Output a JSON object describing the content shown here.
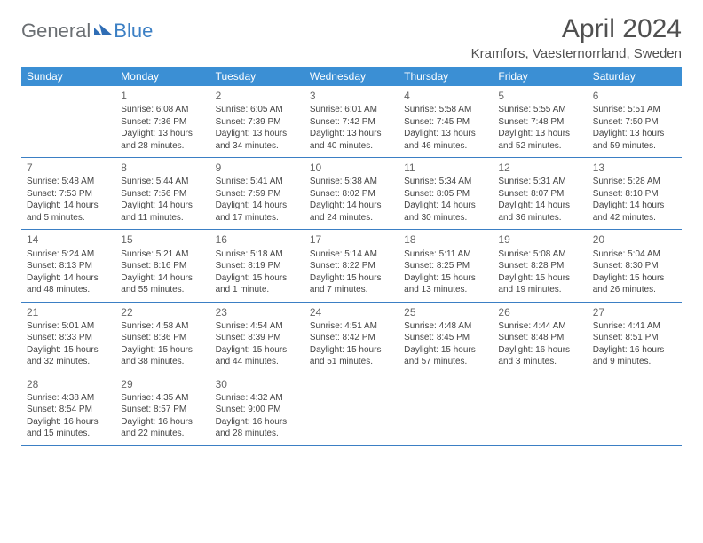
{
  "logo": {
    "general": "General",
    "blue": "Blue"
  },
  "title": "April 2024",
  "location": "Kramfors, Vaesternorrland, Sweden",
  "colors": {
    "header_bg": "#3b8fd4",
    "header_text": "#ffffff",
    "border": "#3b7fc4",
    "body_text": "#444444",
    "title_text": "#505050",
    "logo_gray": "#6b6f73",
    "logo_blue": "#3b7fc4",
    "background": "#ffffff"
  },
  "day_names": [
    "Sunday",
    "Monday",
    "Tuesday",
    "Wednesday",
    "Thursday",
    "Friday",
    "Saturday"
  ],
  "weeks": [
    [
      null,
      {
        "n": "1",
        "sr": "Sunrise: 6:08 AM",
        "ss": "Sunset: 7:36 PM",
        "d1": "Daylight: 13 hours",
        "d2": "and 28 minutes."
      },
      {
        "n": "2",
        "sr": "Sunrise: 6:05 AM",
        "ss": "Sunset: 7:39 PM",
        "d1": "Daylight: 13 hours",
        "d2": "and 34 minutes."
      },
      {
        "n": "3",
        "sr": "Sunrise: 6:01 AM",
        "ss": "Sunset: 7:42 PM",
        "d1": "Daylight: 13 hours",
        "d2": "and 40 minutes."
      },
      {
        "n": "4",
        "sr": "Sunrise: 5:58 AM",
        "ss": "Sunset: 7:45 PM",
        "d1": "Daylight: 13 hours",
        "d2": "and 46 minutes."
      },
      {
        "n": "5",
        "sr": "Sunrise: 5:55 AM",
        "ss": "Sunset: 7:48 PM",
        "d1": "Daylight: 13 hours",
        "d2": "and 52 minutes."
      },
      {
        "n": "6",
        "sr": "Sunrise: 5:51 AM",
        "ss": "Sunset: 7:50 PM",
        "d1": "Daylight: 13 hours",
        "d2": "and 59 minutes."
      }
    ],
    [
      {
        "n": "7",
        "sr": "Sunrise: 5:48 AM",
        "ss": "Sunset: 7:53 PM",
        "d1": "Daylight: 14 hours",
        "d2": "and 5 minutes."
      },
      {
        "n": "8",
        "sr": "Sunrise: 5:44 AM",
        "ss": "Sunset: 7:56 PM",
        "d1": "Daylight: 14 hours",
        "d2": "and 11 minutes."
      },
      {
        "n": "9",
        "sr": "Sunrise: 5:41 AM",
        "ss": "Sunset: 7:59 PM",
        "d1": "Daylight: 14 hours",
        "d2": "and 17 minutes."
      },
      {
        "n": "10",
        "sr": "Sunrise: 5:38 AM",
        "ss": "Sunset: 8:02 PM",
        "d1": "Daylight: 14 hours",
        "d2": "and 24 minutes."
      },
      {
        "n": "11",
        "sr": "Sunrise: 5:34 AM",
        "ss": "Sunset: 8:05 PM",
        "d1": "Daylight: 14 hours",
        "d2": "and 30 minutes."
      },
      {
        "n": "12",
        "sr": "Sunrise: 5:31 AM",
        "ss": "Sunset: 8:07 PM",
        "d1": "Daylight: 14 hours",
        "d2": "and 36 minutes."
      },
      {
        "n": "13",
        "sr": "Sunrise: 5:28 AM",
        "ss": "Sunset: 8:10 PM",
        "d1": "Daylight: 14 hours",
        "d2": "and 42 minutes."
      }
    ],
    [
      {
        "n": "14",
        "sr": "Sunrise: 5:24 AM",
        "ss": "Sunset: 8:13 PM",
        "d1": "Daylight: 14 hours",
        "d2": "and 48 minutes."
      },
      {
        "n": "15",
        "sr": "Sunrise: 5:21 AM",
        "ss": "Sunset: 8:16 PM",
        "d1": "Daylight: 14 hours",
        "d2": "and 55 minutes."
      },
      {
        "n": "16",
        "sr": "Sunrise: 5:18 AM",
        "ss": "Sunset: 8:19 PM",
        "d1": "Daylight: 15 hours",
        "d2": "and 1 minute."
      },
      {
        "n": "17",
        "sr": "Sunrise: 5:14 AM",
        "ss": "Sunset: 8:22 PM",
        "d1": "Daylight: 15 hours",
        "d2": "and 7 minutes."
      },
      {
        "n": "18",
        "sr": "Sunrise: 5:11 AM",
        "ss": "Sunset: 8:25 PM",
        "d1": "Daylight: 15 hours",
        "d2": "and 13 minutes."
      },
      {
        "n": "19",
        "sr": "Sunrise: 5:08 AM",
        "ss": "Sunset: 8:28 PM",
        "d1": "Daylight: 15 hours",
        "d2": "and 19 minutes."
      },
      {
        "n": "20",
        "sr": "Sunrise: 5:04 AM",
        "ss": "Sunset: 8:30 PM",
        "d1": "Daylight: 15 hours",
        "d2": "and 26 minutes."
      }
    ],
    [
      {
        "n": "21",
        "sr": "Sunrise: 5:01 AM",
        "ss": "Sunset: 8:33 PM",
        "d1": "Daylight: 15 hours",
        "d2": "and 32 minutes."
      },
      {
        "n": "22",
        "sr": "Sunrise: 4:58 AM",
        "ss": "Sunset: 8:36 PM",
        "d1": "Daylight: 15 hours",
        "d2": "and 38 minutes."
      },
      {
        "n": "23",
        "sr": "Sunrise: 4:54 AM",
        "ss": "Sunset: 8:39 PM",
        "d1": "Daylight: 15 hours",
        "d2": "and 44 minutes."
      },
      {
        "n": "24",
        "sr": "Sunrise: 4:51 AM",
        "ss": "Sunset: 8:42 PM",
        "d1": "Daylight: 15 hours",
        "d2": "and 51 minutes."
      },
      {
        "n": "25",
        "sr": "Sunrise: 4:48 AM",
        "ss": "Sunset: 8:45 PM",
        "d1": "Daylight: 15 hours",
        "d2": "and 57 minutes."
      },
      {
        "n": "26",
        "sr": "Sunrise: 4:44 AM",
        "ss": "Sunset: 8:48 PM",
        "d1": "Daylight: 16 hours",
        "d2": "and 3 minutes."
      },
      {
        "n": "27",
        "sr": "Sunrise: 4:41 AM",
        "ss": "Sunset: 8:51 PM",
        "d1": "Daylight: 16 hours",
        "d2": "and 9 minutes."
      }
    ],
    [
      {
        "n": "28",
        "sr": "Sunrise: 4:38 AM",
        "ss": "Sunset: 8:54 PM",
        "d1": "Daylight: 16 hours",
        "d2": "and 15 minutes."
      },
      {
        "n": "29",
        "sr": "Sunrise: 4:35 AM",
        "ss": "Sunset: 8:57 PM",
        "d1": "Daylight: 16 hours",
        "d2": "and 22 minutes."
      },
      {
        "n": "30",
        "sr": "Sunrise: 4:32 AM",
        "ss": "Sunset: 9:00 PM",
        "d1": "Daylight: 16 hours",
        "d2": "and 28 minutes."
      },
      null,
      null,
      null,
      null
    ]
  ]
}
